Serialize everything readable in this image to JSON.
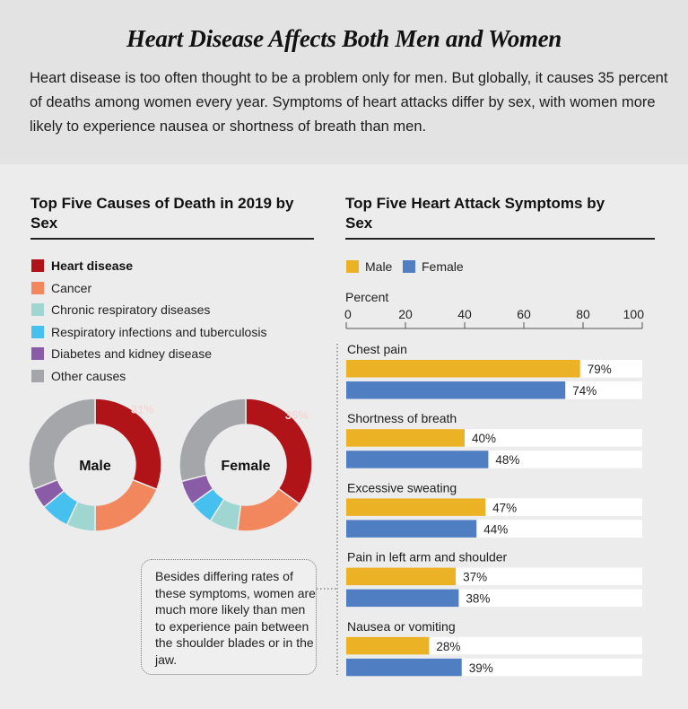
{
  "header": {
    "title": "Heart Disease Affects Both Men and Women",
    "intro": "Heart disease is too often thought to be a problem only for men. But globally, it causes 35 percent of deaths among women every year. Symptoms of heart attacks differ by sex, with women more likely to experience nausea or shortness of breath than men."
  },
  "callout": {
    "text": "Besides differing rates of these symptoms, women are much more likely than men to experience pain between the shoulder blades or in the jaw."
  },
  "colors": {
    "heart": "#b01318",
    "cancer": "#f2875e",
    "chronic": "#9fd6d2",
    "respinf": "#45c0ef",
    "diabetes": "#8a5ca8",
    "other": "#a5a6aa",
    "male": "#ecb226",
    "female": "#4f7ec2",
    "track": "#ffffff"
  },
  "chart_data": [
    {
      "type": "pie",
      "variant": "donut",
      "title": "Top Five Causes of Death in 2019 by Sex",
      "legend": [
        {
          "key": "heart",
          "label": "Heart disease",
          "bold": true
        },
        {
          "key": "cancer",
          "label": "Cancer"
        },
        {
          "key": "chronic",
          "label": "Chronic respiratory diseases"
        },
        {
          "key": "respinf",
          "label": "Respiratory infections and tuberculosis"
        },
        {
          "key": "diabetes",
          "label": "Diabetes and kidney disease"
        },
        {
          "key": "other",
          "label": "Other causes"
        }
      ],
      "legend_position": "top-left",
      "donuts": [
        {
          "name": "Male",
          "values": {
            "heart": 31,
            "cancer": 19,
            "chronic": 7,
            "respinf": 7,
            "diabetes": 5,
            "other": 31
          },
          "label": "31%"
        },
        {
          "name": "Female",
          "values": {
            "heart": 35,
            "cancer": 17,
            "chronic": 7,
            "respinf": 6,
            "diabetes": 6,
            "other": 29
          },
          "label": "35%"
        }
      ]
    },
    {
      "type": "bar",
      "orientation": "horizontal",
      "title": "Top Five Heart Attack Symptoms by Sex",
      "xlabel": "Percent",
      "xlim": [
        0,
        100
      ],
      "xticks": [
        0,
        20,
        40,
        60,
        80,
        100
      ],
      "legend_position": "top-left",
      "categories": [
        "Chest pain",
        "Shortness of breath",
        "Excessive sweating",
        "Pain in left arm and shoulder",
        "Nausea or vomiting"
      ],
      "series": [
        {
          "name": "Male",
          "key": "male",
          "values": [
            79,
            40,
            47,
            37,
            28
          ]
        },
        {
          "name": "Female",
          "key": "female",
          "values": [
            74,
            48,
            44,
            38,
            39
          ]
        }
      ]
    }
  ]
}
